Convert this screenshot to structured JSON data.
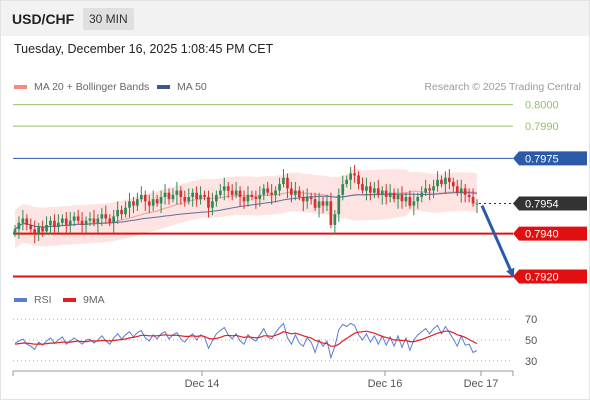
{
  "header": {
    "symbol": "USD/CHF",
    "timeframe": "30 MIN",
    "datetime": "Tuesday, December 16, 2025 1:08:45 PM CET"
  },
  "legend_top": {
    "items": [
      {
        "label": "MA 20 + Bollinger Bands",
        "color": "#f28b82"
      },
      {
        "label": "MA 50",
        "color": "#3a5a8c"
      }
    ],
    "copyright": "Research © 2025 Trading Central"
  },
  "legend_bottom": {
    "items": [
      {
        "label": "RSI",
        "color": "#5b7bd5"
      },
      {
        "label": "9MA",
        "color": "#e02020"
      }
    ]
  },
  "colors": {
    "candle_up": "#2e8b57",
    "candle_down": "#d83030",
    "bb_fill": "#fde3e1",
    "ma20": "#f6a6a0",
    "ma50": "#5a6f9a",
    "resistance_green": "#8ec26b",
    "resistance_blue": "#2a5aa8",
    "support_red": "#e01010",
    "last_price_box": "#333333",
    "arrow": "#2a5aa8",
    "rsi": "#5b7bd5",
    "rsi_ma": "#e02020"
  },
  "chart_data": [
    {
      "type": "candlestick",
      "xlabel": "",
      "ylabel": "",
      "ylim": [
        0.7917,
        0.8004
      ],
      "x_tick_labels": [
        "Dec 14",
        "Dec 16",
        "Dec 17"
      ],
      "levels": [
        {
          "value": 0.8,
          "label": "0.8000",
          "style": "resistance",
          "color": "#8ec26b"
        },
        {
          "value": 0.799,
          "label": "0.7990",
          "style": "resistance",
          "color": "#8ec26b"
        },
        {
          "value": 0.7975,
          "label": "0.7975",
          "style": "pivot",
          "color": "#2a5aa8"
        },
        {
          "value": 0.7954,
          "label": "0.7954",
          "style": "last",
          "color": "#333333"
        },
        {
          "value": 0.794,
          "label": "0.7940",
          "style": "support",
          "color": "#e01010"
        },
        {
          "value": 0.792,
          "label": "0.7920",
          "style": "support",
          "color": "#e01010"
        }
      ],
      "last_price": 0.7954,
      "forecast": {
        "from": 0.7953,
        "to": 0.792,
        "direction": "down"
      },
      "close": [
        0.7942,
        0.7945,
        0.7947,
        0.7944,
        0.7942,
        0.794,
        0.7943,
        0.7941,
        0.7944,
        0.7946,
        0.7943,
        0.7945,
        0.7947,
        0.7944,
        0.7946,
        0.7948,
        0.7946,
        0.7944,
        0.7946,
        0.7947,
        0.7945,
        0.7947,
        0.7949,
        0.7947,
        0.7945,
        0.7948,
        0.7951,
        0.7949,
        0.7952,
        0.7955,
        0.7953,
        0.7956,
        0.7958,
        0.7955,
        0.7953,
        0.7956,
        0.7954,
        0.7957,
        0.7959,
        0.7956,
        0.7958,
        0.796,
        0.7957,
        0.7955,
        0.7957,
        0.7959,
        0.7956,
        0.7958,
        0.7957,
        0.7952,
        0.7955,
        0.7958,
        0.796,
        0.7962,
        0.796,
        0.7958,
        0.796,
        0.7957,
        0.7955,
        0.7958,
        0.7957,
        0.7956,
        0.7958,
        0.7961,
        0.7959,
        0.7958,
        0.796,
        0.7963,
        0.7966,
        0.7961,
        0.7958,
        0.796,
        0.7957,
        0.7955,
        0.7957,
        0.7956,
        0.7952,
        0.7955,
        0.7953,
        0.7955,
        0.7944,
        0.7949,
        0.7958,
        0.7963,
        0.7965,
        0.7968,
        0.7967,
        0.7963,
        0.796,
        0.7962,
        0.7959,
        0.7961,
        0.7958,
        0.796,
        0.7957,
        0.7959,
        0.7956,
        0.7958,
        0.7955,
        0.7957,
        0.7953,
        0.7955,
        0.7957,
        0.7959,
        0.7961,
        0.796,
        0.7962,
        0.7965,
        0.7963,
        0.7966,
        0.7964,
        0.7962,
        0.7959,
        0.7961,
        0.7958,
        0.7957,
        0.7954,
        0.7954
      ]
    },
    {
      "type": "line",
      "title": "RSI",
      "ylim": [
        25,
        75
      ],
      "y_ticks": [
        30,
        50,
        70
      ],
      "series": [
        {
          "name": "RSI",
          "values": [
            47,
            49,
            51,
            46,
            44,
            41,
            48,
            45,
            49,
            52,
            47,
            50,
            53,
            46,
            49,
            52,
            49,
            46,
            50,
            51,
            47,
            50,
            54,
            49,
            46,
            52,
            56,
            51,
            55,
            58,
            53,
            57,
            59,
            52,
            49,
            55,
            51,
            56,
            58,
            51,
            55,
            57,
            51,
            48,
            53,
            56,
            50,
            55,
            53,
            42,
            49,
            56,
            59,
            62,
            55,
            51,
            56,
            49,
            46,
            55,
            51,
            49,
            55,
            61,
            53,
            51,
            57,
            62,
            66,
            52,
            46,
            55,
            47,
            44,
            52,
            48,
            38,
            50,
            44,
            49,
            33,
            44,
            60,
            65,
            63,
            66,
            64,
            55,
            50,
            56,
            48,
            54,
            46,
            54,
            45,
            53,
            44,
            54,
            43,
            52,
            40,
            50,
            55,
            58,
            61,
            56,
            61,
            64,
            56,
            63,
            57,
            51,
            44,
            54,
            45,
            46,
            38,
            40
          ]
        },
        {
          "name": "9MA",
          "values": [
            46,
            46.5,
            47,
            47,
            46.5,
            46,
            46.2,
            46,
            46.5,
            47,
            47,
            47.5,
            48,
            48,
            48,
            48.5,
            49,
            48.5,
            48.5,
            49,
            49,
            49,
            49.5,
            49.5,
            49,
            49.5,
            50,
            50.5,
            51,
            52,
            52.5,
            53.5,
            54.5,
            54.5,
            54,
            54,
            54,
            54.5,
            55,
            54.5,
            54.5,
            54.5,
            54,
            53.5,
            53.5,
            54,
            53.5,
            54,
            53.5,
            51.5,
            51,
            51.5,
            52.5,
            54,
            54.5,
            54,
            54.5,
            53.5,
            52.5,
            53,
            52.5,
            52,
            52.5,
            54,
            54,
            53.5,
            54.5,
            56,
            58,
            57,
            56,
            56.5,
            55.5,
            54,
            53,
            52,
            49.5,
            48.5,
            47,
            46.5,
            44,
            44,
            46,
            49,
            51.5,
            54,
            56.5,
            57.5,
            58,
            58.5,
            57.5,
            56.5,
            55,
            53.5,
            52.5,
            51.5,
            50,
            50,
            49.5,
            49.5,
            48.5,
            48.5,
            49.5,
            50.5,
            52,
            53.5,
            55,
            56.5,
            57.5,
            58.5,
            58.5,
            57,
            55,
            54,
            52.5,
            50.5,
            48.5,
            46.5
          ]
        }
      ]
    }
  ]
}
